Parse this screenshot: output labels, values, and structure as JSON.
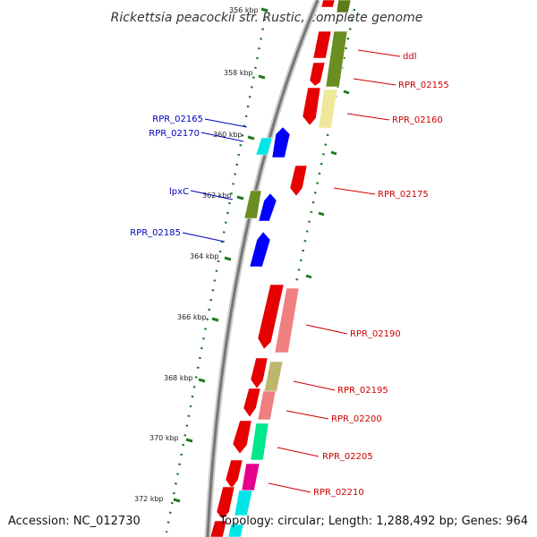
{
  "title": "Rickettsia peacockii str. Rustic, complete genome",
  "footer": {
    "accession": "Accession: NC_012730",
    "topology": "Topology: circular; Length: 1,288,492 bp; Genes: 964"
  },
  "scale_labels": [
    "356 kbp",
    "358 kbp",
    "360 kbp",
    "362 kbp",
    "364 kbp",
    "366 kbp",
    "368 kbp",
    "370 kbp",
    "372 kbp"
  ],
  "colors": {
    "forward_label": "#cc0000",
    "reverse_label": "#0000bb",
    "backbone": "#888888",
    "tick": "#1f7a1f"
  },
  "gene_labels_right": [
    "ddl",
    "RPR_02155",
    "RPR_02160",
    "RPR_02175",
    "RPR_02190",
    "RPR_02195",
    "RPR_02200",
    "RPR_02205",
    "RPR_02210"
  ],
  "gene_labels_left": [
    "RPR_02165",
    "RPR_02170",
    "lpxC",
    "RPR_02185"
  ]
}
